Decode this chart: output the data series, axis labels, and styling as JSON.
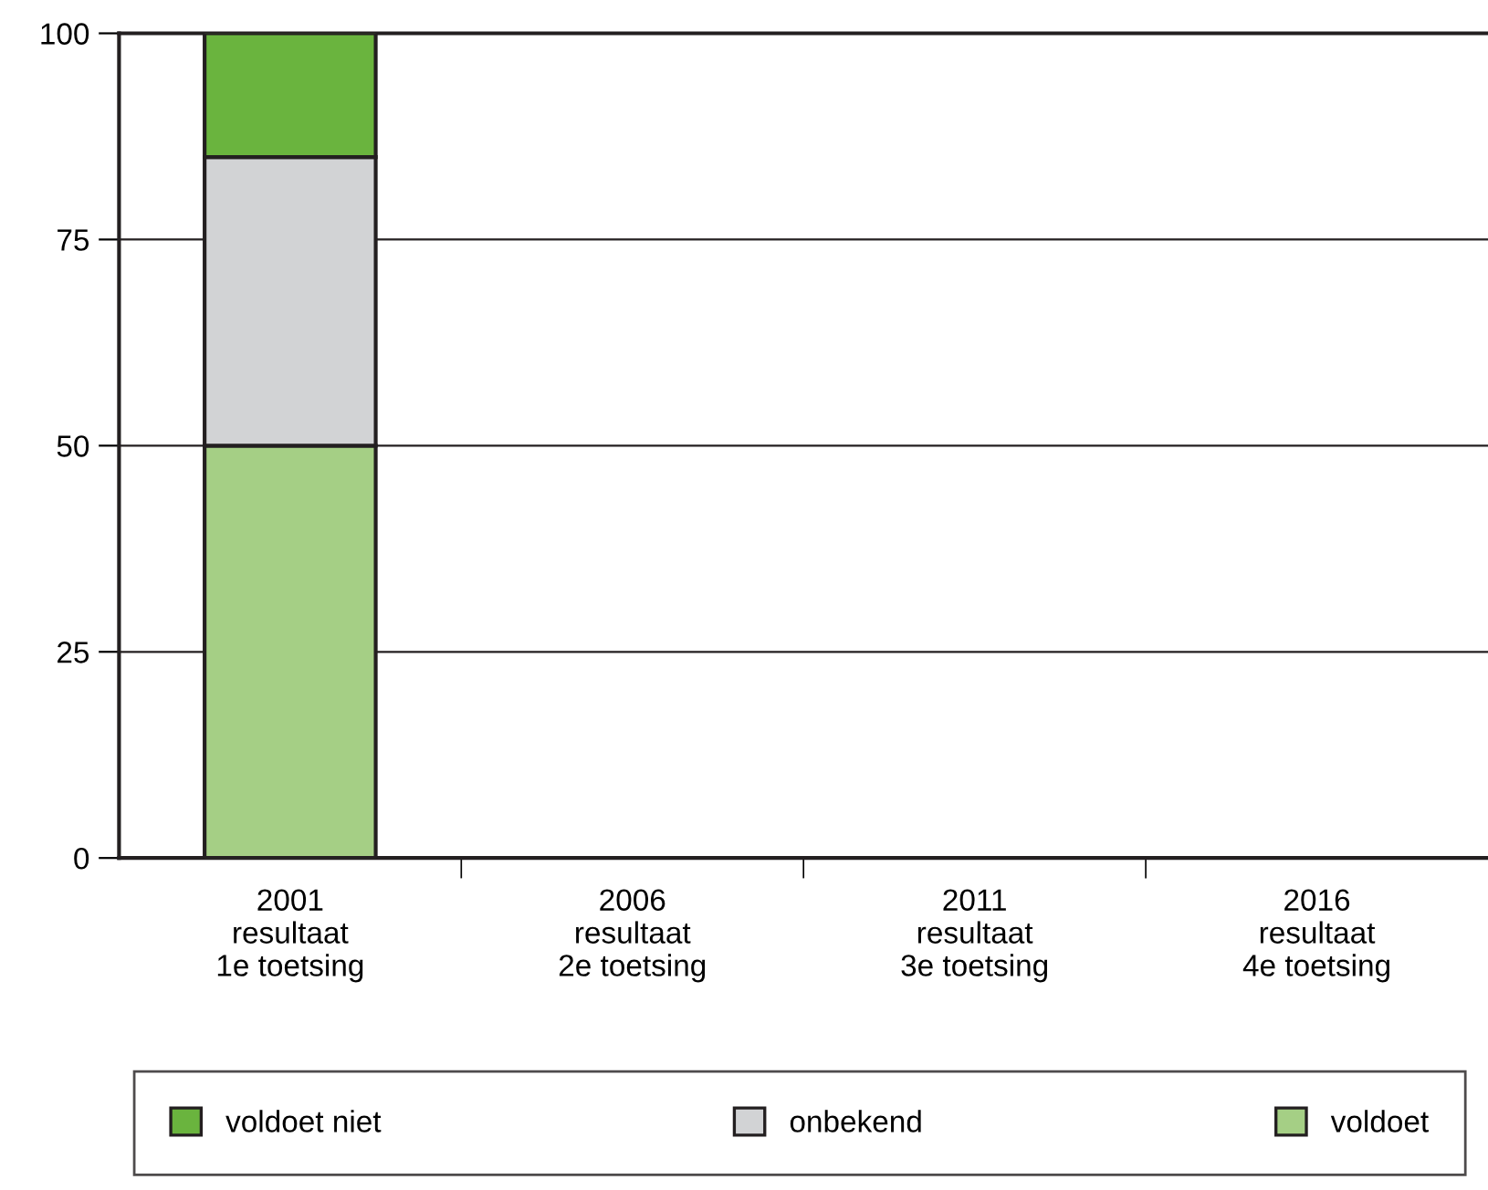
{
  "chart_data": {
    "type": "bar",
    "stacked": true,
    "categories": [
      "2001\nresultaat\n1e toetsing",
      "2006\nresultaat\n2e toetsing",
      "2011\nresultaat\n3e toetsing",
      "2016\nresultaat\n4e toetsing"
    ],
    "series": [
      {
        "name": "voldoet",
        "color": "#a5cf85",
        "values": [
          50,
          null,
          null,
          null
        ]
      },
      {
        "name": "onbekend",
        "color": "#d2d3d5",
        "values": [
          35,
          null,
          null,
          null
        ]
      },
      {
        "name": "voldoet niet",
        "color": "#6ab43e",
        "values": [
          15,
          null,
          null,
          null
        ]
      }
    ],
    "ylim": [
      0,
      100
    ],
    "yticks": [
      0,
      25,
      50,
      75,
      100
    ],
    "grid": "y",
    "legend": "bottom"
  }
}
